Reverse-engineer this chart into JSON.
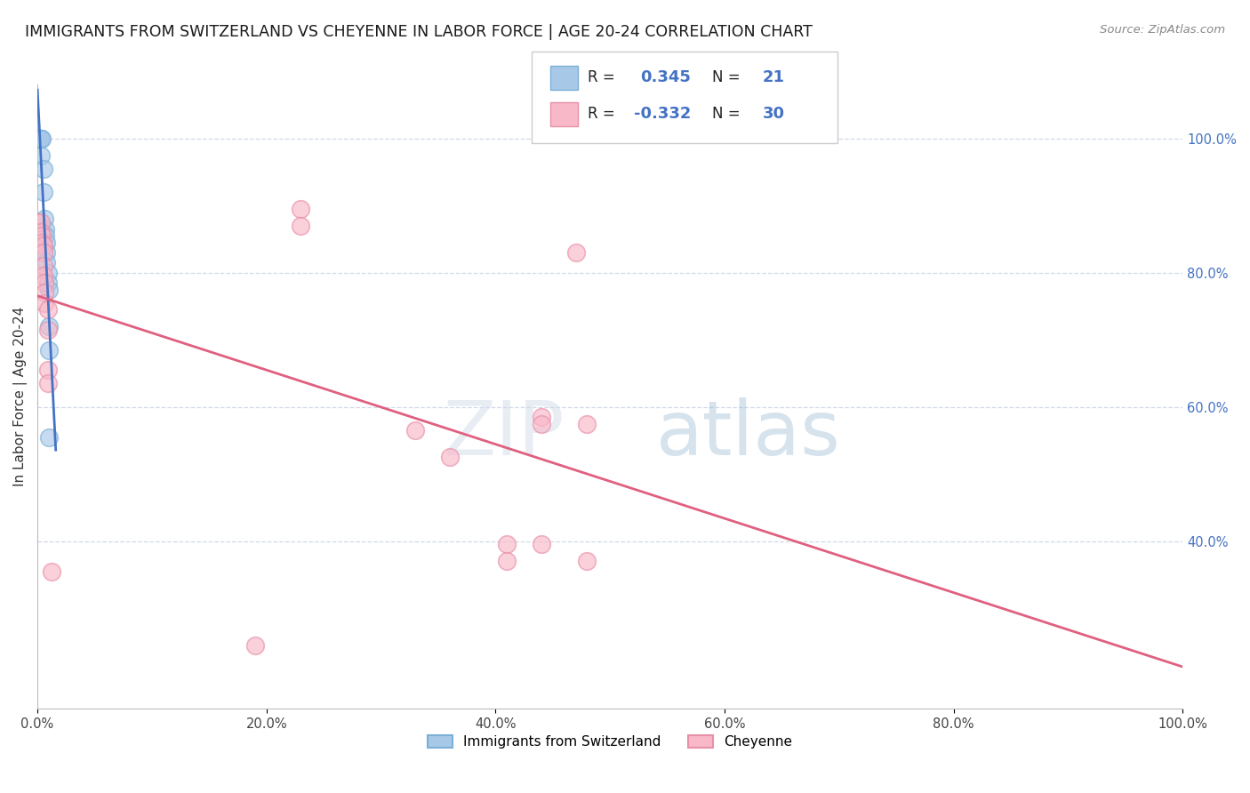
{
  "title": "IMMIGRANTS FROM SWITZERLAND VS CHEYENNE IN LABOR FORCE | AGE 20-24 CORRELATION CHART",
  "source": "Source: ZipAtlas.com",
  "ylabel": "In Labor Force | Age 20-24",
  "x_tick_labels": [
    "0.0%",
    "20.0%",
    "40.0%",
    "60.0%",
    "80.0%",
    "100.0%"
  ],
  "y_tick_labels_right": [
    "40.0%",
    "60.0%",
    "80.0%",
    "100.0%"
  ],
  "xlim": [
    0.0,
    1.0
  ],
  "ylim": [
    0.15,
    1.08
  ],
  "watermark_zip": "ZIP",
  "watermark_atlas": "atlas",
  "swiss_points": [
    [
      0.0,
      1.0
    ],
    [
      0.0,
      1.0
    ],
    [
      0.002,
      1.0
    ],
    [
      0.003,
      1.0
    ],
    [
      0.003,
      1.0
    ],
    [
      0.003,
      0.975
    ],
    [
      0.004,
      1.0
    ],
    [
      0.005,
      0.955
    ],
    [
      0.005,
      0.92
    ],
    [
      0.006,
      0.88
    ],
    [
      0.007,
      0.865
    ],
    [
      0.007,
      0.855
    ],
    [
      0.008,
      0.845
    ],
    [
      0.008,
      0.83
    ],
    [
      0.008,
      0.815
    ],
    [
      0.009,
      0.8
    ],
    [
      0.009,
      0.785
    ],
    [
      0.01,
      0.775
    ],
    [
      0.01,
      0.72
    ],
    [
      0.01,
      0.685
    ],
    [
      0.01,
      0.555
    ]
  ],
  "cheyenne_points": [
    [
      0.0,
      0.875
    ],
    [
      0.003,
      0.875
    ],
    [
      0.003,
      0.86
    ],
    [
      0.004,
      0.855
    ],
    [
      0.004,
      0.845
    ],
    [
      0.005,
      0.84
    ],
    [
      0.005,
      0.83
    ],
    [
      0.005,
      0.81
    ],
    [
      0.005,
      0.795
    ],
    [
      0.006,
      0.785
    ],
    [
      0.006,
      0.77
    ],
    [
      0.006,
      0.755
    ],
    [
      0.009,
      0.745
    ],
    [
      0.009,
      0.715
    ],
    [
      0.009,
      0.655
    ],
    [
      0.009,
      0.635
    ],
    [
      0.012,
      0.355
    ],
    [
      0.19,
      0.245
    ],
    [
      0.23,
      0.895
    ],
    [
      0.23,
      0.87
    ],
    [
      0.33,
      0.565
    ],
    [
      0.36,
      0.525
    ],
    [
      0.41,
      0.395
    ],
    [
      0.41,
      0.37
    ],
    [
      0.44,
      0.585
    ],
    [
      0.44,
      0.575
    ],
    [
      0.44,
      0.395
    ],
    [
      0.47,
      0.83
    ],
    [
      0.48,
      0.575
    ],
    [
      0.48,
      0.37
    ]
  ],
  "swiss_color_fill": "#a8c8e8",
  "swiss_color_edge": "#7ab0d8",
  "cheyenne_color_fill": "#f8b8c8",
  "cheyenne_color_edge": "#e890a8",
  "swiss_line_color": "#4472c4",
  "cheyenne_line_color": "#e06080",
  "background_color": "#ffffff",
  "grid_color": "#d0d8e8",
  "title_fontsize": 12.5,
  "label_fontsize": 11,
  "tick_fontsize": 10.5,
  "marker_size": 200,
  "r_swiss": 0.345,
  "r_cheyenne": -0.332,
  "n_swiss": 21,
  "n_cheyenne": 30,
  "r_color": "#4472c4",
  "n_color": "#4472c4"
}
